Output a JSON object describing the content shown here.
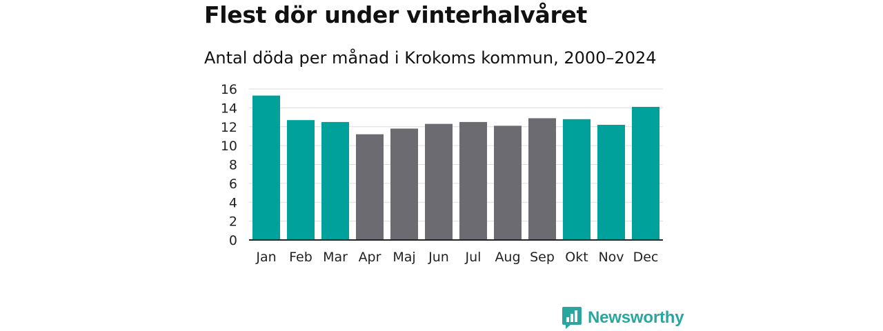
{
  "header": {
    "title": "Flest dör under vinterhalvåret",
    "subtitle": "Antal döda per månad i Krokoms kommun, 2000–2024"
  },
  "brand": {
    "name": "Newsworthy"
  },
  "colors": {
    "winter": "#00a19b",
    "summer": "#6c6b72",
    "brand": "#28a69f",
    "grid": "#dcdcdc",
    "axis": "#222222"
  },
  "chart_data": {
    "type": "bar",
    "title": "Flest dör under vinterhalvåret",
    "subtitle": "Antal döda per månad i Krokoms kommun, 2000–2024",
    "xlabel": "",
    "ylabel": "",
    "ylim": [
      0,
      16
    ],
    "yticks": [
      0,
      2,
      4,
      6,
      8,
      10,
      12,
      14,
      16
    ],
    "grid": true,
    "categories": [
      "Jan",
      "Feb",
      "Mar",
      "Apr",
      "Maj",
      "Jun",
      "Jul",
      "Aug",
      "Sep",
      "Okt",
      "Nov",
      "Dec"
    ],
    "values": [
      15.3,
      12.7,
      12.5,
      11.2,
      11.8,
      12.3,
      12.5,
      12.1,
      12.9,
      12.8,
      12.2,
      14.1
    ],
    "groups": [
      "winter",
      "winter",
      "winter",
      "summer",
      "summer",
      "summer",
      "summer",
      "summer",
      "summer",
      "winter",
      "winter",
      "winter"
    ]
  }
}
